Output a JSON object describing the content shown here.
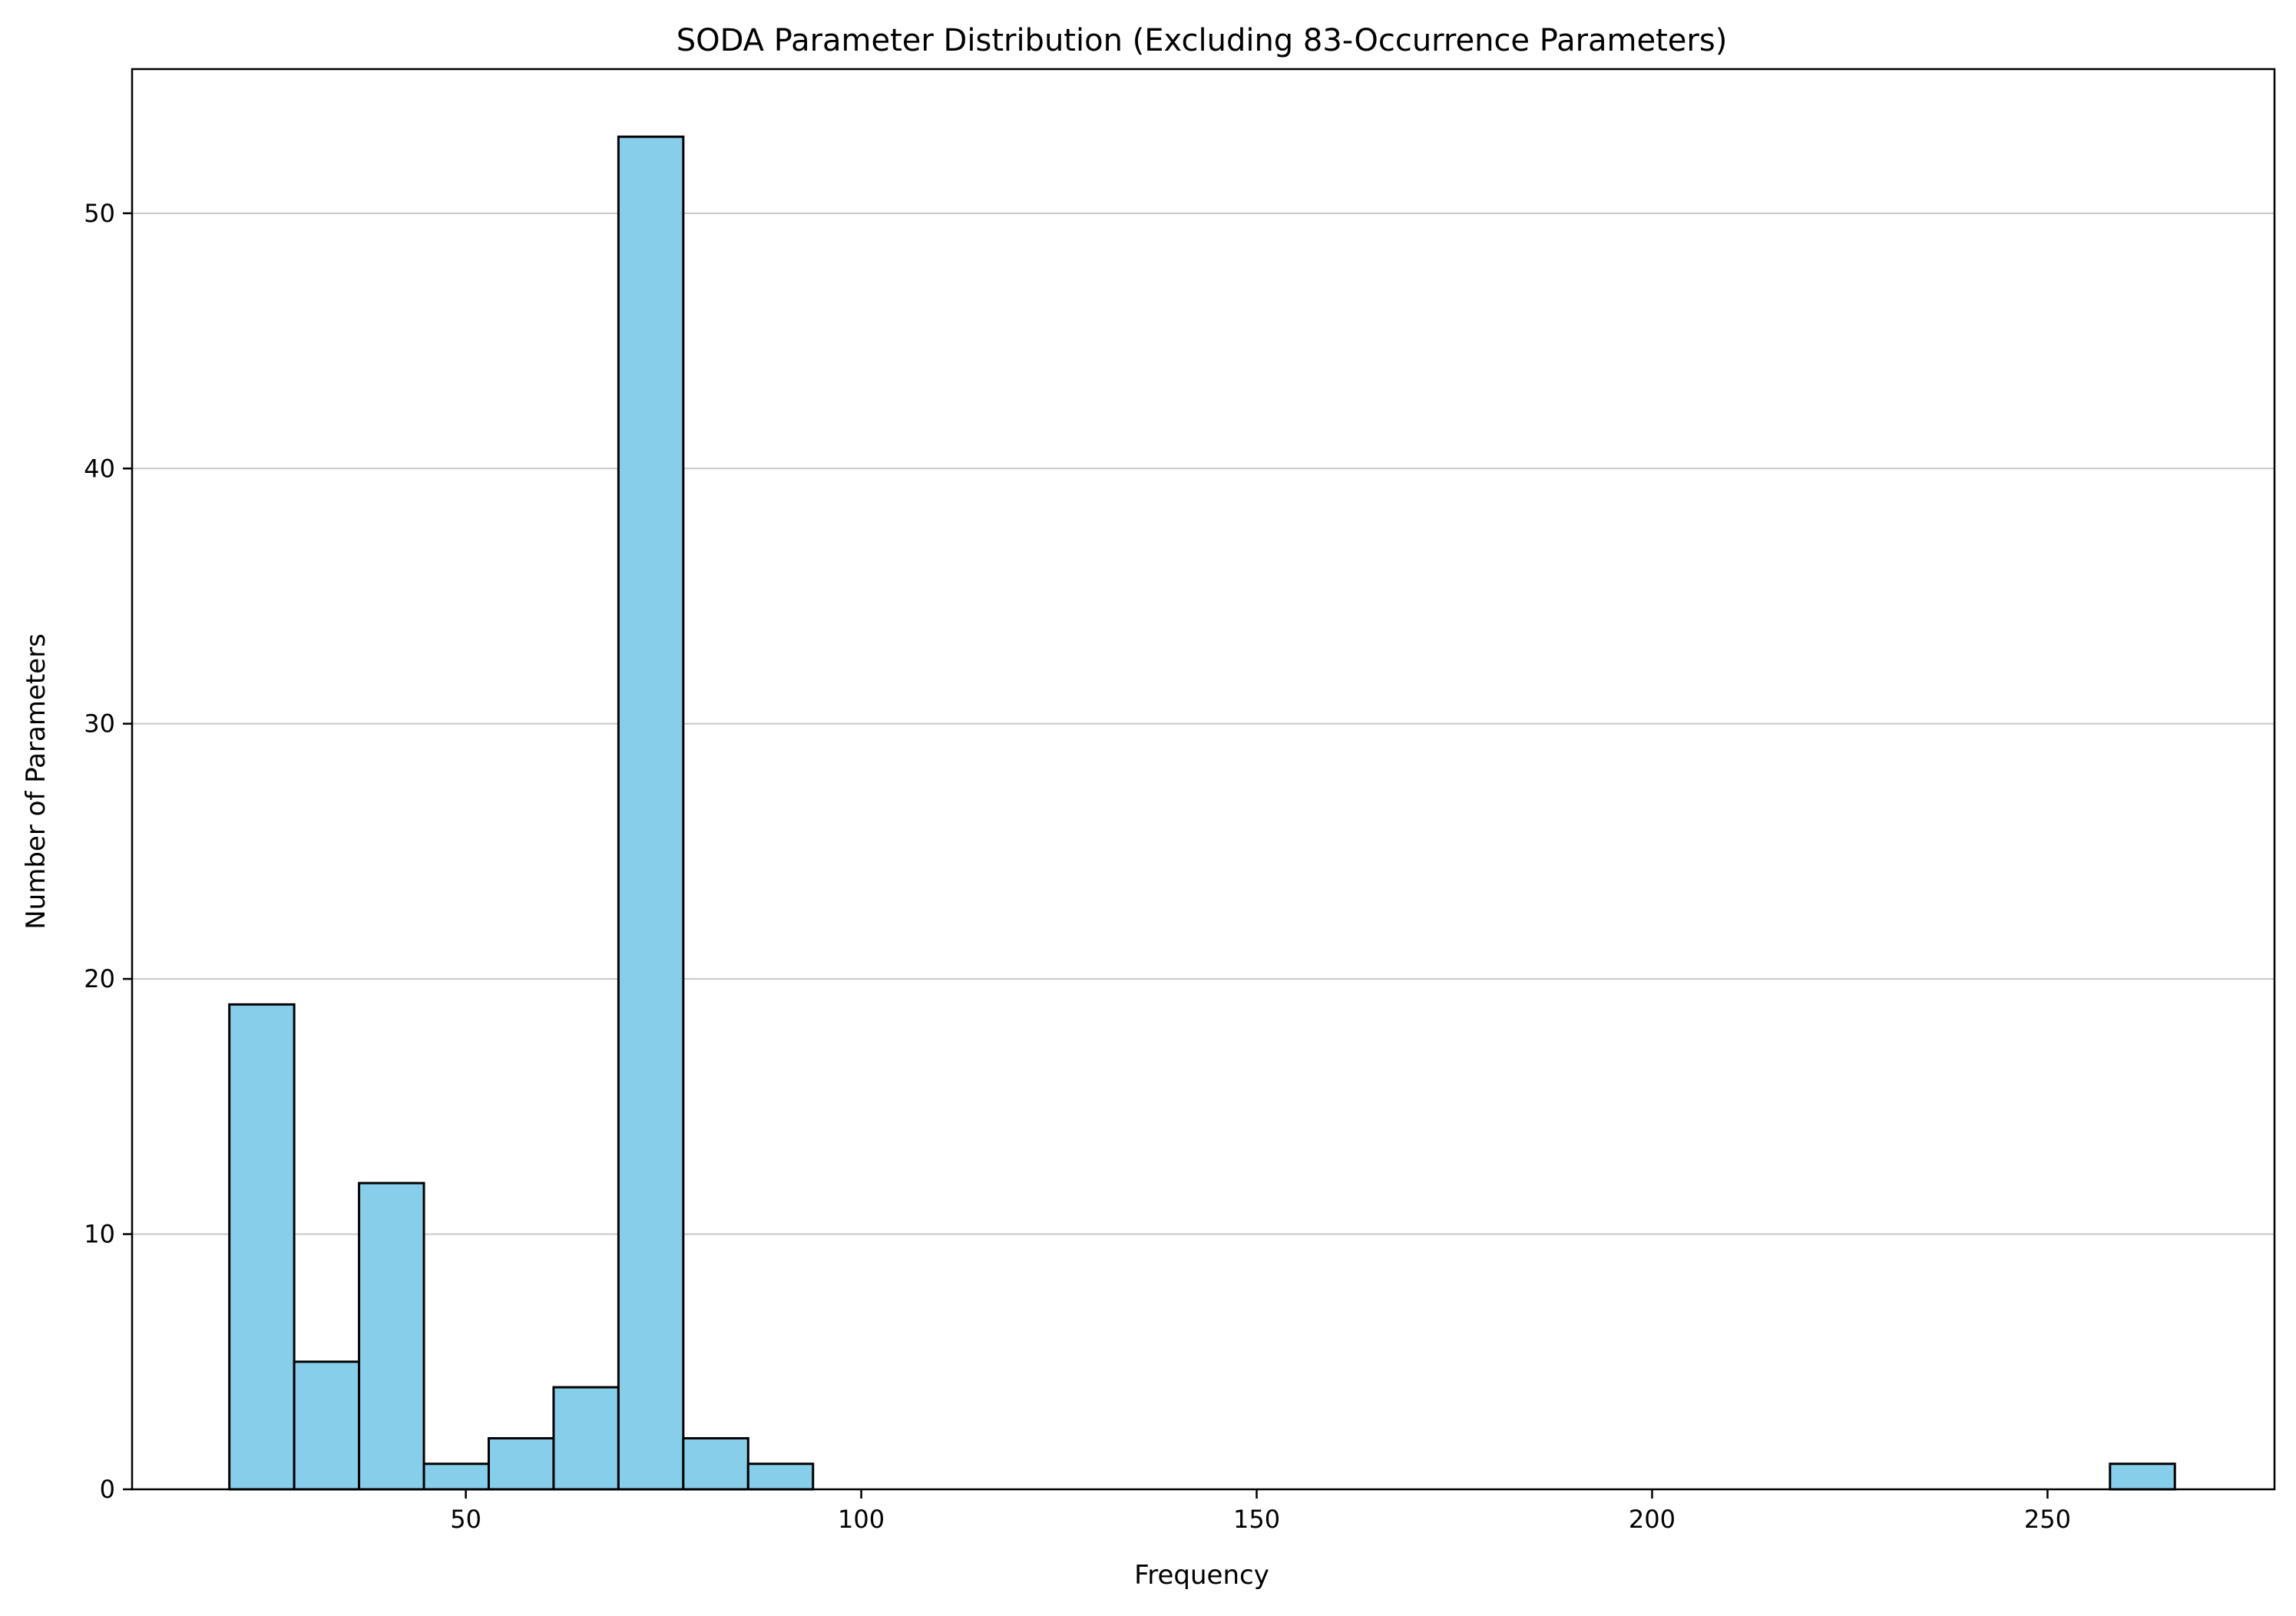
{
  "chart_data": {
    "type": "bar",
    "title": "SODA Parameter Distribution (Excluding 83-Occurrence Parameters)",
    "xlabel": "Frequency",
    "ylabel": "Number of Parameters",
    "xlim": [
      7.8,
      278.7
    ],
    "ylim": [
      0,
      55.65
    ],
    "x_ticks": [
      50,
      100,
      150,
      200,
      250
    ],
    "y_ticks": [
      0,
      10,
      20,
      30,
      40,
      50
    ],
    "grid": "y-axis",
    "bin_edges": [
      20.1,
      28.3,
      36.5,
      44.7,
      52.9,
      61.1,
      69.3,
      77.5,
      85.7,
      93.9,
      257.9,
      266.1
    ],
    "bins": [
      {
        "x0": 20.1,
        "x1": 28.3,
        "count": 19
      },
      {
        "x0": 28.3,
        "x1": 36.5,
        "count": 5
      },
      {
        "x0": 36.5,
        "x1": 44.7,
        "count": 12
      },
      {
        "x0": 44.7,
        "x1": 52.9,
        "count": 1
      },
      {
        "x0": 52.9,
        "x1": 61.1,
        "count": 2
      },
      {
        "x0": 61.1,
        "x1": 69.3,
        "count": 4
      },
      {
        "x0": 69.3,
        "x1": 77.5,
        "count": 53
      },
      {
        "x0": 77.5,
        "x1": 85.7,
        "count": 2
      },
      {
        "x0": 85.7,
        "x1": 93.9,
        "count": 1
      },
      {
        "x0": 257.9,
        "x1": 266.1,
        "count": 1
      }
    ],
    "colors": {
      "bar_fill": "#87ceeb",
      "bar_edge": "#000000",
      "grid": "#c8c8c8",
      "axes": "#000000"
    }
  }
}
